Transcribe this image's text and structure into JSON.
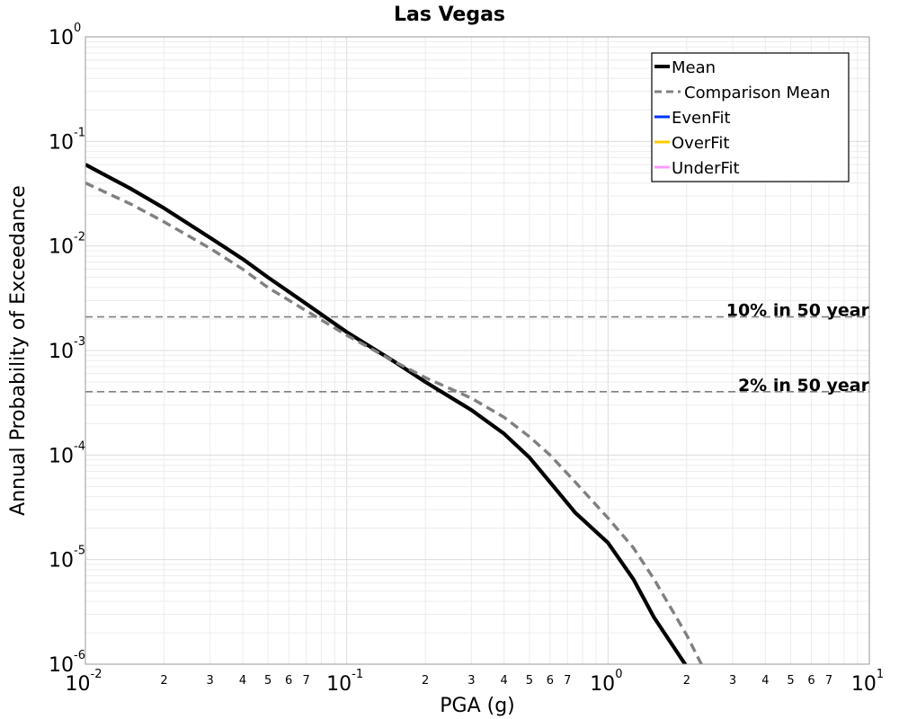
{
  "chart_data": {
    "type": "line",
    "title": "Las Vegas",
    "xlabel": "PGA (g)",
    "ylabel": "Annual Probability of Exceedance",
    "x_scale": "log",
    "y_scale": "log",
    "xlim": [
      0.01,
      10
    ],
    "ylim": [
      1e-06,
      1
    ],
    "grid": true,
    "legend_position": "top-right",
    "x_major_ticks": [
      {
        "base": "10",
        "exp": "-2"
      },
      {
        "base": "10",
        "exp": "-1"
      },
      {
        "base": "10",
        "exp": "0"
      },
      {
        "base": "10",
        "exp": "1"
      }
    ],
    "y_major_ticks": [
      {
        "base": "10",
        "exp": "0"
      },
      {
        "base": "10",
        "exp": "-1"
      },
      {
        "base": "10",
        "exp": "-2"
      },
      {
        "base": "10",
        "exp": "-3"
      },
      {
        "base": "10",
        "exp": "-4"
      },
      {
        "base": "10",
        "exp": "-5"
      },
      {
        "base": "10",
        "exp": "-6"
      }
    ],
    "x_minor_tick_labels": [
      "2",
      "3",
      "4",
      "5",
      "6",
      "7"
    ],
    "series": [
      {
        "name": "Mean",
        "color": "#000000",
        "style": "solid",
        "x": [
          0.01,
          0.015,
          0.02,
          0.03,
          0.04,
          0.05,
          0.07,
          0.1,
          0.15,
          0.2,
          0.3,
          0.4,
          0.5,
          0.6,
          0.75,
          1.0,
          1.25,
          1.5,
          2.0
        ],
        "y": [
          0.06,
          0.035,
          0.023,
          0.012,
          0.0075,
          0.005,
          0.0028,
          0.0015,
          0.0008,
          0.0005,
          0.00027,
          0.00016,
          9.5e-05,
          5.5e-05,
          2.8e-05,
          1.45e-05,
          6.5e-06,
          2.8e-06,
          9.5e-07
        ]
      },
      {
        "name": "Comparison Mean",
        "color": "#808080",
        "style": "dashed",
        "x": [
          0.01,
          0.015,
          0.02,
          0.03,
          0.04,
          0.05,
          0.07,
          0.1,
          0.15,
          0.2,
          0.3,
          0.4,
          0.5,
          0.6,
          0.75,
          1.0,
          1.25,
          1.5,
          2.0,
          2.3
        ],
        "y": [
          0.04,
          0.025,
          0.017,
          0.0095,
          0.006,
          0.004,
          0.0024,
          0.0014,
          0.0008,
          0.00055,
          0.00035,
          0.00023,
          0.00015,
          0.0001,
          5.5e-05,
          2.5e-05,
          1.3e-05,
          6.5e-06,
          1.9e-06,
          9.5e-07
        ]
      },
      {
        "name": "EvenFit",
        "color": "#0033ff",
        "style": "solid",
        "x": [],
        "y": []
      },
      {
        "name": "OverFit",
        "color": "#ffcc00",
        "style": "solid",
        "x": [],
        "y": []
      },
      {
        "name": "UnderFit",
        "color": "#ff99ff",
        "style": "solid",
        "x": [],
        "y": []
      }
    ],
    "reference_lines": [
      {
        "label": "10% in 50 year",
        "y": 0.0021,
        "color": "#808080",
        "style": "dashed"
      },
      {
        "label": "2% in 50 year",
        "y": 0.000404,
        "color": "#808080",
        "style": "dashed"
      }
    ]
  }
}
